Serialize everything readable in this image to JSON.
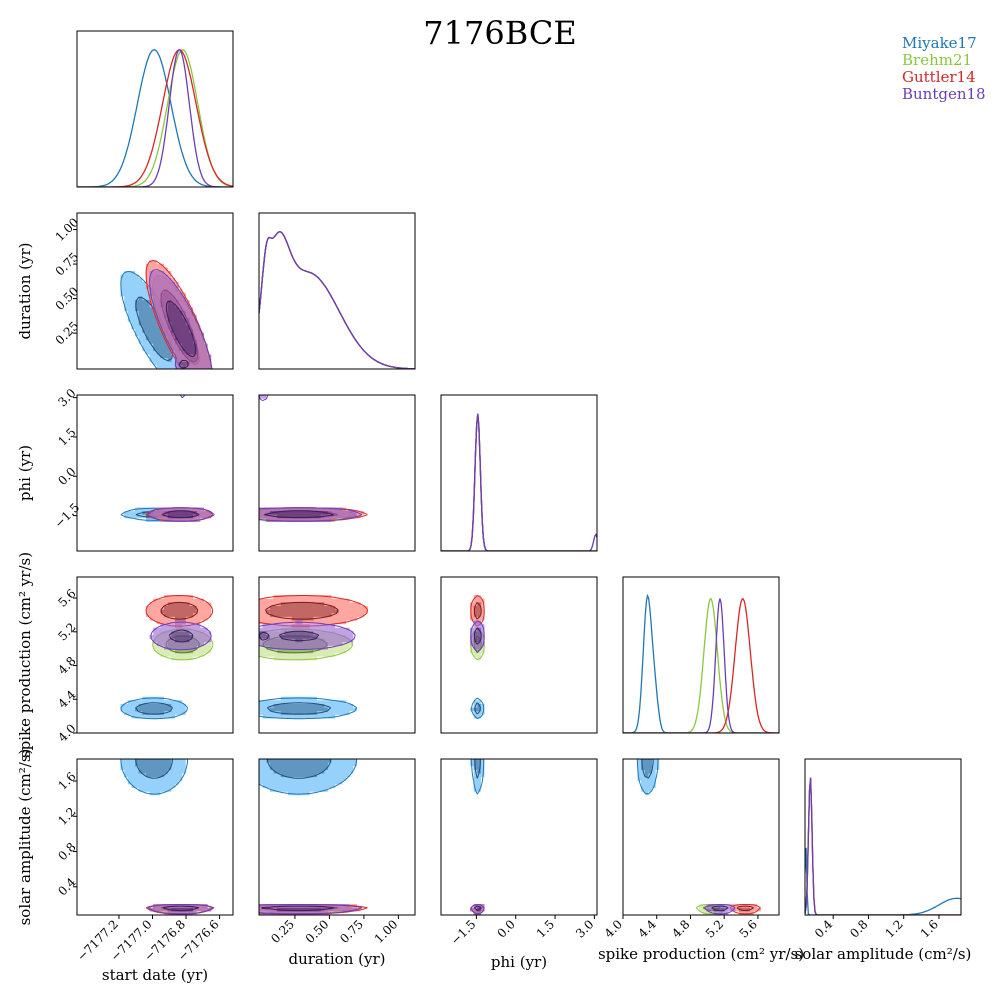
{
  "chart_data": {
    "type": "corner",
    "title": "7176BCE",
    "parameters": [
      "start date (yr)",
      "duration (yr)",
      "phi (yr)",
      "spike production (cm$^2$ yr/s)",
      "solar amplitude (cm$^2$/s)"
    ],
    "labels": {
      "x": [
        "start date (yr)",
        "duration (yr)",
        "phi (yr)",
        "spike production (cm² yr/s)",
        "solar amplitude (cm²/s)"
      ],
      "y": [
        "",
        "duration (yr)",
        "phi (yr)",
        "spike production (cm² yr/s)",
        "solar amplitude (cm²/s)"
      ]
    },
    "ranges": [
      [
        -7177.45,
        -7176.52
      ],
      [
        -0.01,
        1.12
      ],
      [
        -2.85,
        3.1
      ],
      [
        4.0,
        5.85
      ],
      [
        0.08,
        1.85
      ]
    ],
    "ticks": [
      [
        "−7177.2",
        "−7177.0",
        "−7176.8",
        "−7176.6"
      ],
      [
        "0.25",
        "0.50",
        "0.75",
        "1.00"
      ],
      [
        "−1.5",
        "0.0",
        "1.5",
        "3.0"
      ],
      [
        "4.0",
        "4.4",
        "4.8",
        "5.2",
        "5.6"
      ],
      [
        "0.4",
        "0.8",
        "1.2",
        "1.6"
      ]
    ],
    "tick_values": [
      [
        -7177.2,
        -7177.0,
        -7176.8,
        -7176.6
      ],
      [
        0.25,
        0.5,
        0.75,
        1.0
      ],
      [
        -1.5,
        0.0,
        1.5,
        3.0
      ],
      [
        4.0,
        4.4,
        4.8,
        5.2,
        5.6
      ],
      [
        0.4,
        0.8,
        1.2,
        1.6
      ]
    ],
    "legend_position": "top-right",
    "series": [
      {
        "name": "Miyake17",
        "color": "#1f77b4",
        "fill": "#4fb3f6",
        "dark": "#1f4e79",
        "modes": [
          {
            "mean": [
              -7176.99,
              0.28,
              -1.45,
              4.29,
              1.85
            ],
            "sd": [
              0.1,
              0.21,
              0.1,
              0.06,
              0.2
            ],
            "rho": 0,
            "rhoPairs": {
              "0-1": -0.78
            }
          }
        ],
        "marginals": [
          {
            "peaks": [
              [
                -7176.99,
                0.1,
                1.0
              ]
            ]
          },
          {
            "peaks": [
              [
                0.04,
                0.03,
                0.35
              ],
              [
                0.12,
                0.08,
                0.7
              ],
              [
                0.35,
                0.22,
                0.85
              ]
            ]
          },
          {
            "peaks": [
              [
                -1.45,
                0.1,
                1.0
              ]
            ]
          },
          {
            "peaks": [
              [
                4.29,
                0.05,
                1.0
              ],
              [
                4.38,
                0.04,
                0.25
              ]
            ]
          },
          {
            "peaks": [
              [
                0.09,
                0.01,
                0.5
              ],
              [
                1.8,
                0.2,
                0.12
              ]
            ]
          }
        ]
      },
      {
        "name": "Brehm21",
        "color": "#8cc63f",
        "fill": "#c2e085",
        "dark": "#4f7a1f",
        "modes": [
          {
            "mean": [
              -7176.82,
              0.25,
              -1.45,
              5.05,
              0.15
            ],
            "sd": [
              0.09,
              0.21,
              0.12,
              0.09,
              0.02
            ],
            "rho": 0,
            "rhoPairs": {
              "0-1": -0.8
            }
          }
        ],
        "marginals": [
          {
            "peaks": [
              [
                -7176.82,
                0.09,
                1.0
              ]
            ]
          },
          {
            "peaks": [
              [
                0.04,
                0.03,
                0.35
              ],
              [
                0.12,
                0.08,
                0.7
              ],
              [
                0.35,
                0.22,
                0.85
              ]
            ]
          },
          {
            "peaks": [
              [
                -1.45,
                0.1,
                1.0
              ]
            ]
          },
          {
            "peaks": [
              [
                5.04,
                0.08,
                1.0
              ]
            ]
          },
          {
            "peaks": [
              [
                0.14,
                0.02,
                1.0
              ]
            ]
          }
        ]
      },
      {
        "name": "Guttler14",
        "color": "#d62728",
        "fill": "#ff6b61",
        "dark": "#7a1a1a",
        "modes": [
          {
            "mean": [
              -7176.84,
              0.3,
              -1.45,
              5.45,
              0.15
            ],
            "sd": [
              0.1,
              0.24,
              0.12,
              0.09,
              0.02
            ],
            "rho": 0,
            "rhoPairs": {
              "0-1": -0.8
            }
          }
        ],
        "marginals": [
          {
            "peaks": [
              [
                -7176.84,
                0.1,
                1.0
              ]
            ]
          },
          {
            "peaks": [
              [
                0.04,
                0.03,
                0.35
              ],
              [
                0.12,
                0.08,
                0.7
              ],
              [
                0.35,
                0.22,
                0.85
              ]
            ]
          },
          {
            "peaks": [
              [
                -1.45,
                0.1,
                1.0
              ]
            ]
          },
          {
            "peaks": [
              [
                5.42,
                0.09,
                1.0
              ]
            ]
          },
          {
            "peaks": [
              [
                0.14,
                0.02,
                1.0
              ]
            ]
          }
        ]
      },
      {
        "name": "Buntgen18",
        "color": "#6a3fb5",
        "fill": "#9a62d6",
        "dark": "#3a1f5e",
        "modes": [
          {
            "mean": [
              -7176.83,
              0.28,
              -1.45,
              5.15,
              0.15
            ],
            "sd": [
              0.1,
              0.23,
              0.12,
              0.09,
              0.02
            ],
            "rho": 0,
            "rhoPairs": {
              "0-1": -0.8
            },
            "weight": 0.97
          },
          {
            "mean": [
              -7176.82,
              0.02,
              3.05,
              5.15,
              0.14
            ],
            "sd": [
              0.02,
              0.02,
              0.08,
              0.03,
              0.01
            ],
            "rho": 0,
            "rhoPairs": {},
            "weight": 0.03
          }
        ],
        "marginals": [
          {
            "peaks": [
              [
                -7176.84,
                0.06,
                1.0
              ]
            ]
          },
          {
            "peaks": [
              [
                0.04,
                0.03,
                0.35
              ],
              [
                0.12,
                0.08,
                0.7
              ],
              [
                0.35,
                0.22,
                0.85
              ]
            ]
          },
          {
            "peaks": [
              [
                -1.45,
                0.1,
                1.0
              ],
              [
                3.05,
                0.08,
                0.12
              ]
            ]
          },
          {
            "peaks": [
              [
                5.15,
                0.05,
                1.0
              ]
            ]
          },
          {
            "peaks": [
              [
                0.14,
                0.02,
                1.0
              ]
            ]
          }
        ]
      }
    ]
  }
}
